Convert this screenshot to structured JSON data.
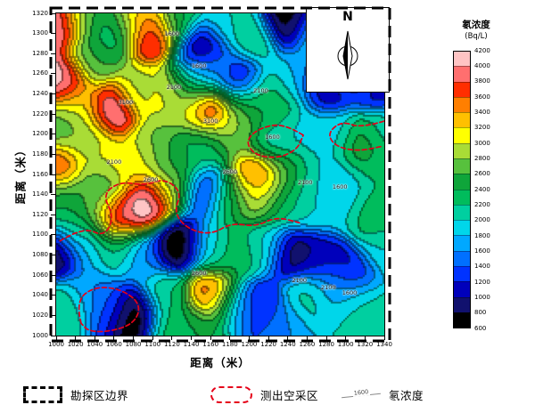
{
  "chart_data": {
    "type": "contour",
    "title": "",
    "xlabel": "距离（米）",
    "ylabel": "距离（米）",
    "north_label": "N",
    "xlim": [
      1000,
      1340
    ],
    "ylim": [
      1000,
      1320
    ],
    "xticks": [
      1000,
      1020,
      1040,
      1060,
      1080,
      1100,
      1120,
      1140,
      1160,
      1180,
      1200,
      1220,
      1240,
      1260,
      1280,
      1300,
      1320,
      1340
    ],
    "yticks": [
      1000,
      1020,
      1040,
      1060,
      1080,
      1100,
      1120,
      1140,
      1160,
      1180,
      1200,
      1220,
      1240,
      1260,
      1280,
      1300,
      1320
    ],
    "levels_min": 600,
    "level_step": 200,
    "kernel_sigma_m": 15,
    "colorbar": {
      "title": "氡浓度",
      "units": "(Bq/L)",
      "ticks": [
        600,
        800,
        1000,
        1200,
        1400,
        1600,
        1800,
        2000,
        2200,
        2400,
        2600,
        2800,
        3000,
        3200,
        3400,
        3600,
        3800,
        4000,
        4200
      ],
      "colors": [
        "#000000",
        "#11116e",
        "#0000bb",
        "#0033ff",
        "#0070ff",
        "#00a8ff",
        "#00d6ea",
        "#00cfa0",
        "#00bc5c",
        "#0fa53a",
        "#57c13d",
        "#a9dc36",
        "#ffff00",
        "#ffc000",
        "#ff7f00",
        "#ff2e00",
        "#ff6f6f",
        "#ffc4c4"
      ]
    },
    "contour_line_labels": [
      {
        "x": 1148,
        "y": 1268,
        "text": "1600"
      },
      {
        "x": 1120,
        "y": 1300,
        "text": "1600"
      },
      {
        "x": 1122,
        "y": 1247,
        "text": "2100"
      },
      {
        "x": 1072,
        "y": 1232,
        "text": "3100"
      },
      {
        "x": 1160,
        "y": 1213,
        "text": "3100"
      },
      {
        "x": 1098,
        "y": 1155,
        "text": "2600"
      },
      {
        "x": 1212,
        "y": 1243,
        "text": "2100"
      },
      {
        "x": 1224,
        "y": 1197,
        "text": "1600"
      },
      {
        "x": 1180,
        "y": 1163,
        "text": "2600"
      },
      {
        "x": 1258,
        "y": 1152,
        "text": "2100"
      },
      {
        "x": 1294,
        "y": 1148,
        "text": "1600"
      },
      {
        "x": 1060,
        "y": 1172,
        "text": "2100"
      },
      {
        "x": 1148,
        "y": 1062,
        "text": "2600"
      },
      {
        "x": 1252,
        "y": 1055,
        "text": "2100"
      },
      {
        "x": 1282,
        "y": 1048,
        "text": "2100"
      },
      {
        "x": 1304,
        "y": 1042,
        "text": "1600"
      }
    ],
    "goaf_zones": [
      [
        [
          1282,
          1320
        ],
        [
          1294,
          1302
        ],
        [
          1284,
          1278
        ],
        [
          1299,
          1259
        ],
        [
          1330,
          1252
        ],
        [
          1340,
          1263
        ]
      ],
      [
        [
          1340,
          1213
        ],
        [
          1316,
          1206
        ],
        [
          1296,
          1213
        ],
        [
          1281,
          1201
        ],
        [
          1289,
          1188
        ],
        [
          1312,
          1183
        ],
        [
          1338,
          1188
        ]
      ],
      [
        [
          1256,
          1199
        ],
        [
          1236,
          1211
        ],
        [
          1210,
          1206
        ],
        [
          1196,
          1193
        ],
        [
          1206,
          1179
        ],
        [
          1230,
          1176
        ],
        [
          1250,
          1185
        ],
        [
          1256,
          1199
        ]
      ],
      [
        [
          1004,
          1094
        ],
        [
          1028,
          1108
        ],
        [
          1050,
          1098
        ],
        [
          1060,
          1118
        ],
        [
          1048,
          1140
        ],
        [
          1066,
          1153
        ],
        [
          1092,
          1149
        ],
        [
          1112,
          1156
        ],
        [
          1130,
          1143
        ],
        [
          1122,
          1122
        ],
        [
          1136,
          1106
        ],
        [
          1160,
          1100
        ],
        [
          1182,
          1112
        ],
        [
          1206,
          1108
        ],
        [
          1228,
          1118
        ],
        [
          1252,
          1112
        ]
      ],
      [
        [
          1026,
          1012
        ],
        [
          1020,
          1034
        ],
        [
          1040,
          1049
        ],
        [
          1068,
          1046
        ],
        [
          1088,
          1031
        ],
        [
          1081,
          1012
        ],
        [
          1056,
          1004
        ],
        [
          1034,
          1004
        ],
        [
          1026,
          1012
        ]
      ]
    ],
    "control_points": [
      [
        1003,
        1312,
        4100
      ],
      [
        1030,
        1318,
        2600
      ],
      [
        1058,
        1302,
        2200
      ],
      [
        1082,
        1316,
        3200
      ],
      [
        1100,
        1298,
        4000
      ],
      [
        1125,
        1312,
        2400
      ],
      [
        1150,
        1285,
        700
      ],
      [
        1175,
        1310,
        2000
      ],
      [
        1205,
        1295,
        2200
      ],
      [
        1240,
        1313,
        600
      ],
      [
        1268,
        1300,
        1900
      ],
      [
        1295,
        1282,
        2000
      ],
      [
        1325,
        1292,
        1800
      ],
      [
        1008,
        1252,
        4200
      ],
      [
        1038,
        1272,
        2600
      ],
      [
        1022,
        1228,
        3000
      ],
      [
        1055,
        1225,
        4100
      ],
      [
        1085,
        1245,
        2900
      ],
      [
        1112,
        1242,
        3100
      ],
      [
        1140,
        1256,
        2000
      ],
      [
        1162,
        1264,
        1700
      ],
      [
        1190,
        1253,
        1000
      ],
      [
        1218,
        1240,
        2300
      ],
      [
        1246,
        1256,
        1800
      ],
      [
        1278,
        1252,
        1000
      ],
      [
        1306,
        1268,
        1700
      ],
      [
        1336,
        1255,
        1100
      ],
      [
        1135,
        1228,
        2900
      ],
      [
        1160,
        1222,
        4000
      ],
      [
        1192,
        1225,
        2700
      ],
      [
        1224,
        1222,
        2400
      ],
      [
        1002,
        1208,
        2600
      ],
      [
        1030,
        1196,
        2800
      ],
      [
        1002,
        1168,
        3700
      ],
      [
        1045,
        1175,
        3100
      ],
      [
        1075,
        1170,
        3200
      ],
      [
        1102,
        1186,
        2800
      ],
      [
        1128,
        1180,
        2400
      ],
      [
        1155,
        1192,
        2200
      ],
      [
        1186,
        1202,
        2800
      ],
      [
        1225,
        1195,
        2000
      ],
      [
        1255,
        1200,
        1900
      ],
      [
        1285,
        1196,
        1900
      ],
      [
        1315,
        1182,
        2700
      ],
      [
        1340,
        1196,
        2100
      ],
      [
        1210,
        1158,
        3700
      ],
      [
        1240,
        1165,
        2600
      ],
      [
        1268,
        1162,
        2000
      ],
      [
        1298,
        1155,
        1700
      ],
      [
        1330,
        1160,
        2200
      ],
      [
        1005,
        1135,
        2400
      ],
      [
        1035,
        1128,
        2700
      ],
      [
        1062,
        1118,
        4000
      ],
      [
        1095,
        1130,
        4200
      ],
      [
        1120,
        1148,
        2900
      ],
      [
        1152,
        1142,
        1200
      ],
      [
        1180,
        1135,
        2400
      ],
      [
        1206,
        1140,
        3000
      ],
      [
        1235,
        1132,
        2300
      ],
      [
        1264,
        1128,
        2000
      ],
      [
        1295,
        1128,
        1900
      ],
      [
        1326,
        1120,
        2400
      ],
      [
        1045,
        1150,
        2500
      ],
      [
        1018,
        1108,
        2200
      ],
      [
        1000,
        1082,
        700
      ],
      [
        1030,
        1090,
        1800
      ],
      [
        1060,
        1085,
        2200
      ],
      [
        1090,
        1078,
        1600
      ],
      [
        1125,
        1090,
        500
      ],
      [
        1158,
        1088,
        1900
      ],
      [
        1186,
        1082,
        2400
      ],
      [
        1215,
        1090,
        2000
      ],
      [
        1246,
        1082,
        800
      ],
      [
        1275,
        1078,
        1100
      ],
      [
        1305,
        1062,
        1000
      ],
      [
        1336,
        1085,
        2000
      ],
      [
        1008,
        1030,
        2200
      ],
      [
        1035,
        1046,
        1600
      ],
      [
        1056,
        1028,
        1400
      ],
      [
        1080,
        1020,
        500
      ],
      [
        1112,
        1042,
        2200
      ],
      [
        1118,
        1008,
        2300
      ],
      [
        1145,
        1005,
        2400
      ],
      [
        1160,
        1042,
        3600
      ],
      [
        1186,
        1028,
        1900
      ],
      [
        1208,
        1028,
        1000
      ],
      [
        1232,
        1012,
        1600
      ],
      [
        1260,
        1040,
        2100
      ],
      [
        1290,
        1048,
        1700
      ],
      [
        1312,
        1035,
        2100
      ],
      [
        1338,
        1012,
        2100
      ]
    ]
  },
  "legend": {
    "items": [
      {
        "label": "勘探区边界",
        "symbol": "black-dashed-rect"
      },
      {
        "label": "测出空采区",
        "symbol": "red-dashed-outline"
      },
      {
        "label": "氡浓度",
        "symbol": "contour-line",
        "value": "1600"
      }
    ]
  }
}
